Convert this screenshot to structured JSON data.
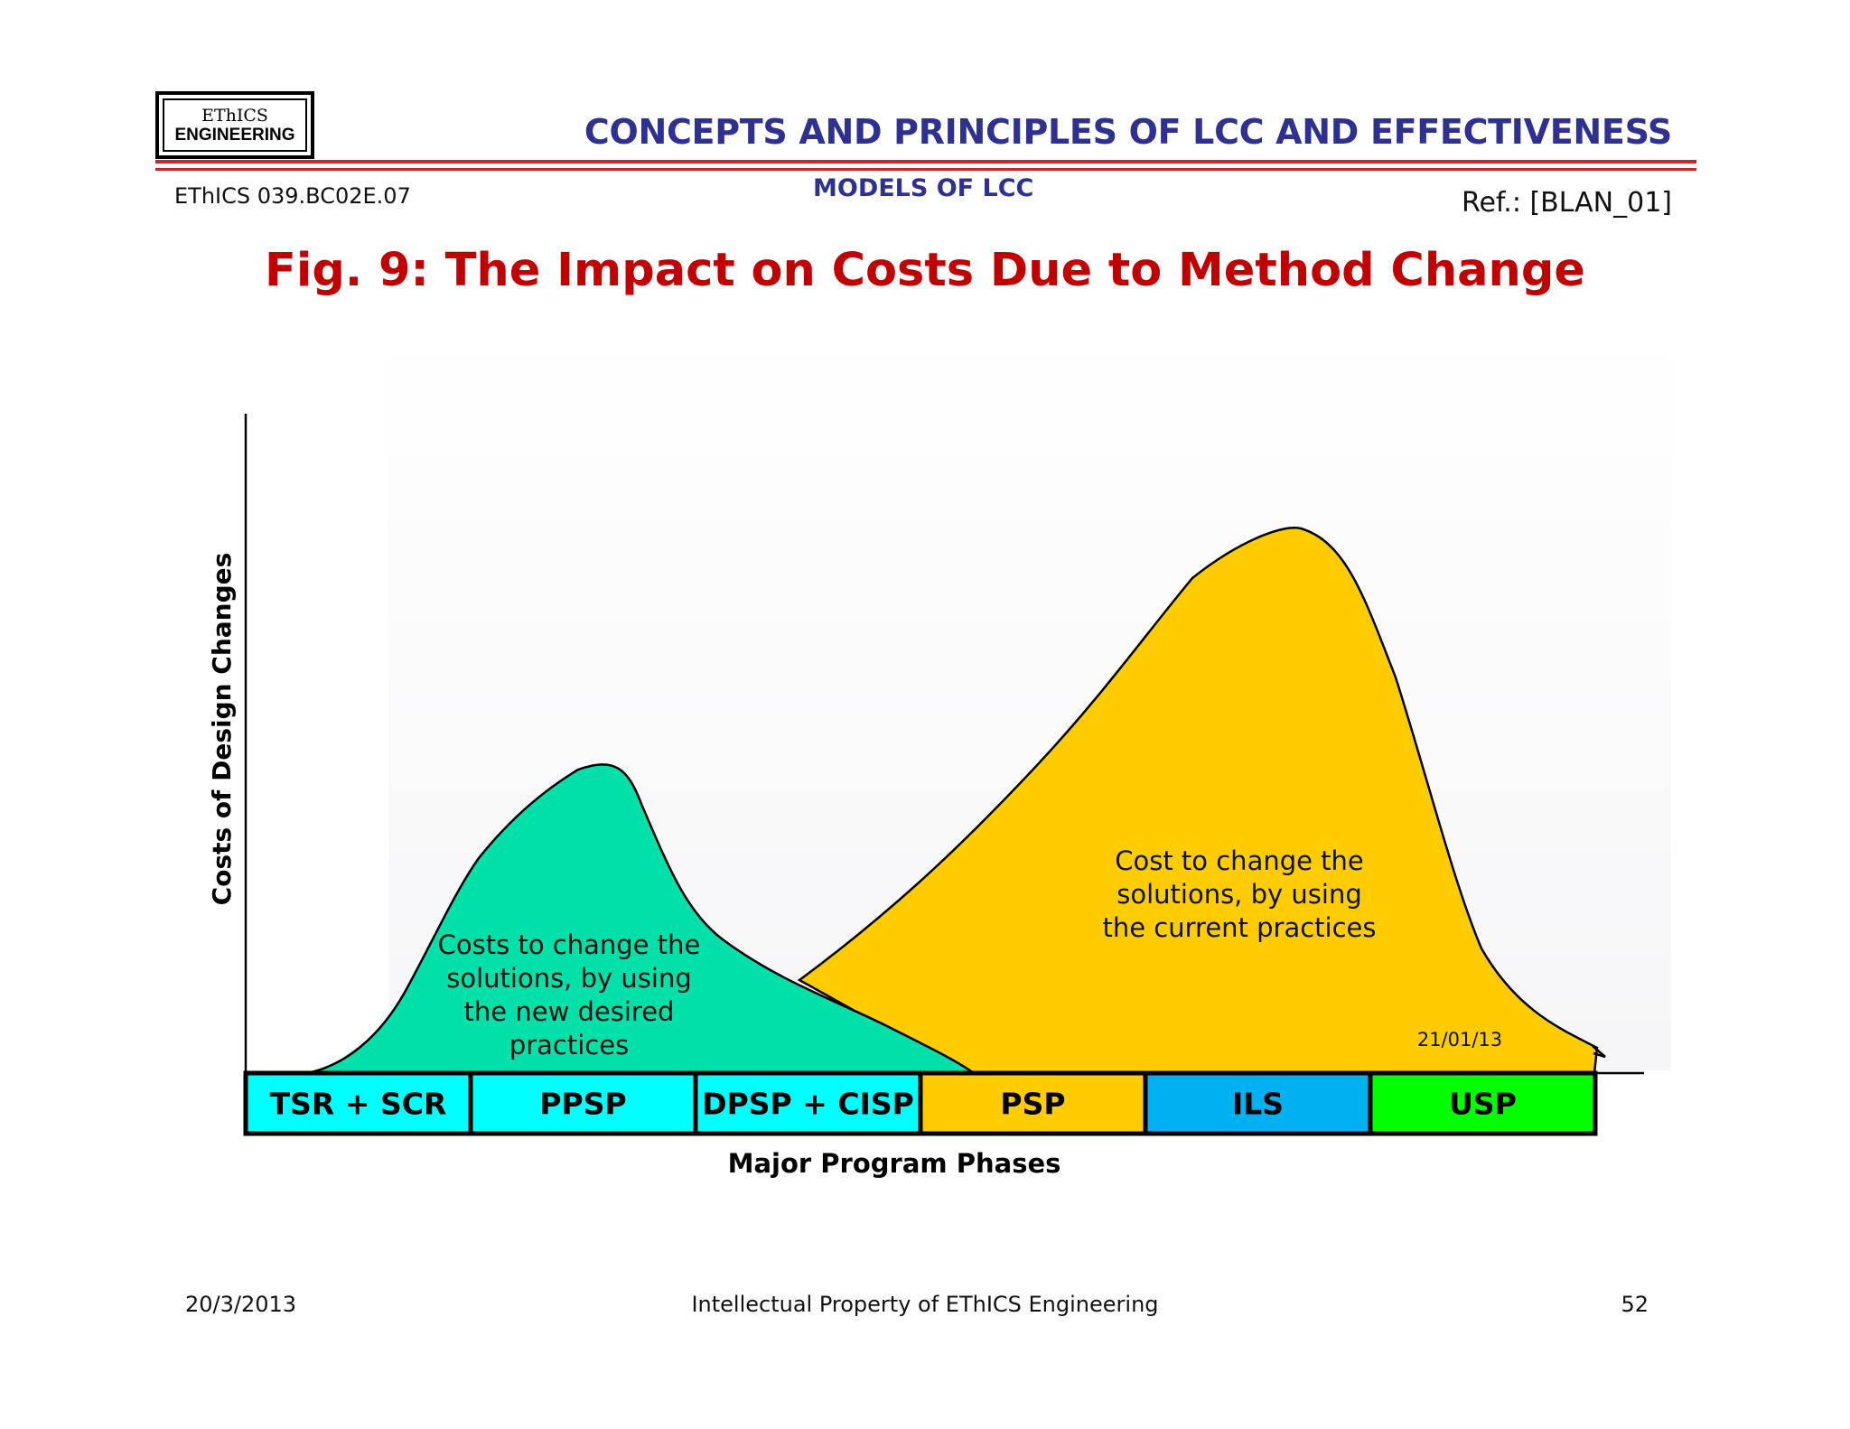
{
  "header": {
    "logo": {
      "line1": "EThICS",
      "line2": "ENGINEERING"
    },
    "title": "CONCEPTS AND PRINCIPLES OF LCC AND EFFECTIVENESS",
    "subtitle": "MODELS OF LCC",
    "doc_code": "EThICS 039.BC02E.07",
    "ref": "Ref.: [BLAN_01]"
  },
  "figure": {
    "title": "Fig. 9: The Impact on Costs Due to Method Change",
    "y_axis_label": "Costs of Design Changes",
    "x_axis_label": "Major Program Phases",
    "stamp_date": "21/01/13",
    "curves": [
      {
        "name": "new-practices",
        "color": "#00e0a8",
        "lines": [
          "Costs to change the",
          "solutions, by using",
          "the new desired",
          "practices"
        ]
      },
      {
        "name": "current-practices",
        "color": "#ffcc00",
        "lines": [
          "Cost to change the",
          "solutions, by using",
          "the current practices"
        ]
      }
    ],
    "phases": [
      {
        "label": "TSR + SCR",
        "color": "#00ffff"
      },
      {
        "label": "PPSP",
        "color": "#00ffff"
      },
      {
        "label": "DPSP + CISP",
        "color": "#00ffff"
      },
      {
        "label": "PSP",
        "color": "#ffcc00"
      },
      {
        "label": "ILS",
        "color": "#00b0f0"
      },
      {
        "label": "USP",
        "color": "#00ff00"
      }
    ]
  },
  "footer": {
    "date": "20/3/2013",
    "center": "Intellectual Property of EThICS Engineering",
    "page": "52"
  }
}
